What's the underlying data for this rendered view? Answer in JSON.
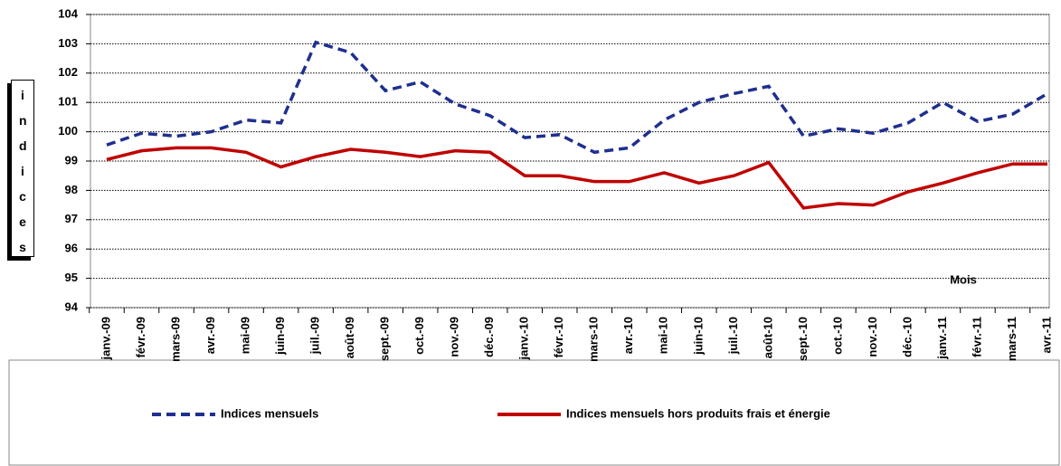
{
  "chart_data": {
    "type": "line",
    "ylabel": "indices",
    "annotation": "Mois",
    "categories": [
      "janv.-09",
      "févr.-09",
      "mars-09",
      "avr.-09",
      "mai-09",
      "juin-09",
      "juil.-09",
      "août-09",
      "sept.-09",
      "oct.-09",
      "nov.-09",
      "déc.-09",
      "janv.-10",
      "févr.-10",
      "mars-10",
      "avr.-10",
      "mai-10",
      "juin-10",
      "juil.-10",
      "août-10",
      "sept.-10",
      "oct.-10",
      "nov.-10",
      "déc.-10",
      "janv.-11",
      "févr.-11",
      "mars-11",
      "avr.-11"
    ],
    "series": [
      {
        "name": "Indices mensuels",
        "color": "#1f2f8f",
        "dashed": true,
        "values": [
          99.55,
          99.95,
          99.85,
          100.0,
          100.4,
          100.3,
          103.05,
          102.7,
          101.4,
          101.7,
          100.95,
          100.55,
          99.8,
          99.9,
          99.3,
          99.45,
          100.4,
          101.0,
          101.3,
          101.55,
          99.85,
          100.1,
          99.95,
          100.3,
          101.0,
          100.35,
          100.6,
          101.3
        ]
      },
      {
        "name": "Indices mensuels hors produits frais et énergie",
        "color": "#c00000",
        "dashed": false,
        "values": [
          99.05,
          99.35,
          99.45,
          99.45,
          99.3,
          98.8,
          99.15,
          99.4,
          99.3,
          99.15,
          99.35,
          99.3,
          98.5,
          98.5,
          98.3,
          98.3,
          98.6,
          98.25,
          98.5,
          98.95,
          97.4,
          97.55,
          97.5,
          97.95,
          98.25,
          98.6,
          98.9,
          98.9
        ]
      }
    ],
    "ylim": [
      94,
      104
    ],
    "yticks": [
      94,
      95,
      96,
      97,
      98,
      99,
      100,
      101,
      102,
      103,
      104
    ],
    "grid": true
  }
}
